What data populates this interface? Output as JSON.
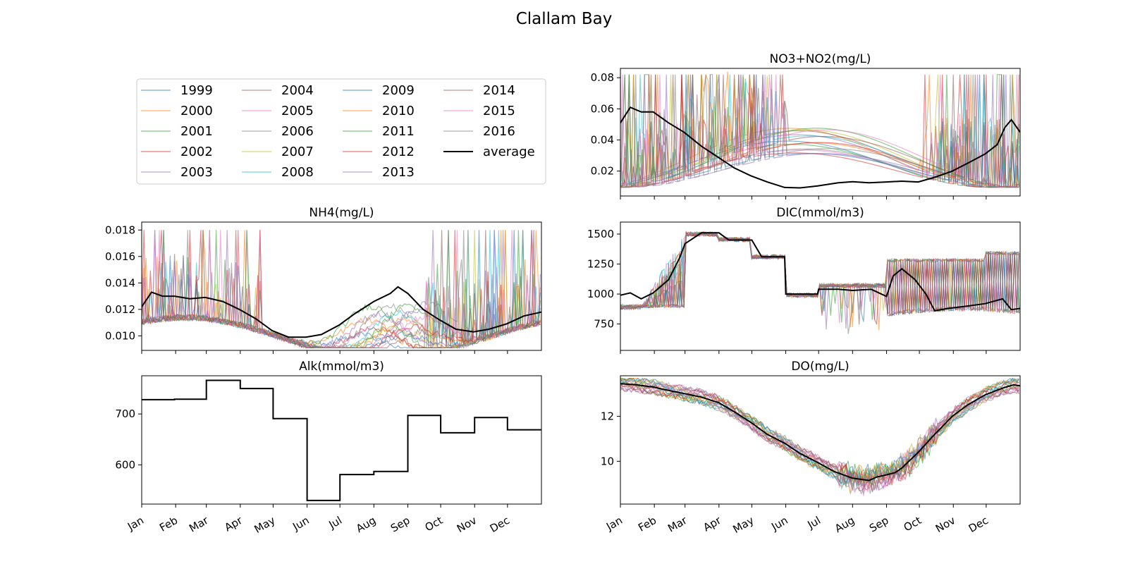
{
  "figure": {
    "title": "Clallam Bay"
  },
  "colors": {
    "average": "#000000",
    "palette": [
      "#1f77b4",
      "#ff7f0e",
      "#2ca02c",
      "#d62728",
      "#9467bd",
      "#8c564b",
      "#e377c2",
      "#7f7f7f",
      "#bcbd22",
      "#17becf"
    ]
  },
  "legend": {
    "entries": [
      "1999",
      "2000",
      "2001",
      "2002",
      "2003",
      "2004",
      "2005",
      "2006",
      "2007",
      "2008",
      "2009",
      "2010",
      "2011",
      "2012",
      "2013",
      "2014",
      "2015",
      "2016",
      "average"
    ]
  },
  "months": [
    "Jan",
    "Feb",
    "Mar",
    "Apr",
    "May",
    "Jun",
    "Jul",
    "Aug",
    "Sep",
    "Oct",
    "Nov",
    "Dec"
  ],
  "chart_data": [
    {
      "type": "line",
      "id": "no3",
      "title": "NO3+NO2(mg/L)",
      "xlabel": "",
      "ylabel": "",
      "xlim": [
        1,
        366
      ],
      "ylim": [
        0.004,
        0.086
      ],
      "yticks": [
        0.02,
        0.04,
        0.06,
        0.08
      ],
      "ytick_labels": [
        "0.02",
        "0.04",
        "0.06",
        "0.08"
      ],
      "years": [
        "1999",
        "2000",
        "2001",
        "2002",
        "2003",
        "2004",
        "2005",
        "2006",
        "2007",
        "2008",
        "2009",
        "2010",
        "2011",
        "2012",
        "2013",
        "2014",
        "2015",
        "2016"
      ],
      "average": {
        "name": "average",
        "x": [
          1,
          10,
          20,
          31,
          45,
          59,
          75,
          90,
          105,
          120,
          135,
          151,
          165,
          181,
          200,
          213,
          228,
          244,
          258,
          273,
          288,
          304,
          318,
          334,
          345,
          352,
          358,
          366
        ],
        "y": [
          0.051,
          0.061,
          0.058,
          0.058,
          0.051,
          0.045,
          0.036,
          0.029,
          0.022,
          0.017,
          0.013,
          0.0095,
          0.0092,
          0.0105,
          0.0125,
          0.0132,
          0.0125,
          0.013,
          0.0135,
          0.013,
          0.016,
          0.02,
          0.025,
          0.031,
          0.037,
          0.048,
          0.053,
          0.045
        ]
      }
    },
    {
      "type": "line",
      "id": "nh4",
      "title": "NH4(mg/L)",
      "xlabel": "",
      "ylabel": "",
      "xlim": [
        1,
        366
      ],
      "ylim": [
        0.0089,
        0.0186
      ],
      "yticks": [
        0.01,
        0.012,
        0.014,
        0.016,
        0.018
      ],
      "ytick_labels": [
        "0.010",
        "0.012",
        "0.014",
        "0.016",
        "0.018"
      ],
      "years": [
        "1999",
        "2000",
        "2001",
        "2002",
        "2003",
        "2004",
        "2005",
        "2006",
        "2007",
        "2008",
        "2009",
        "2010",
        "2011",
        "2012",
        "2013",
        "2014",
        "2015",
        "2016"
      ],
      "average": {
        "name": "average",
        "x": [
          1,
          10,
          20,
          31,
          45,
          59,
          75,
          90,
          105,
          120,
          135,
          151,
          165,
          181,
          196,
          213,
          228,
          235,
          244,
          258,
          273,
          288,
          304,
          318,
          334,
          350,
          366
        ],
        "y": [
          0.0122,
          0.0133,
          0.013,
          0.013,
          0.0128,
          0.0129,
          0.0126,
          0.012,
          0.0113,
          0.0104,
          0.0099,
          0.0099,
          0.0101,
          0.0108,
          0.0117,
          0.0126,
          0.0132,
          0.0137,
          0.0132,
          0.012,
          0.0112,
          0.0105,
          0.0103,
          0.0105,
          0.0109,
          0.0115,
          0.0118
        ]
      }
    },
    {
      "type": "line",
      "id": "dic",
      "title": "DIC(mmol/m3)",
      "xlabel": "",
      "ylabel": "",
      "xlim": [
        1,
        366
      ],
      "ylim": [
        530,
        1600
      ],
      "yticks": [
        750,
        1000,
        1250,
        1500
      ],
      "ytick_labels": [
        "750",
        "1000",
        "1250",
        "1500"
      ],
      "years": [
        "1999",
        "2000",
        "2001",
        "2002",
        "2003",
        "2004",
        "2005",
        "2006",
        "2007",
        "2008",
        "2009",
        "2010",
        "2011",
        "2012",
        "2013",
        "2014",
        "2015",
        "2016"
      ],
      "average": {
        "name": "average",
        "x": [
          1,
          10,
          20,
          31,
          45,
          55,
          60,
          75,
          91,
          100,
          121,
          130,
          151,
          152,
          170,
          181,
          182,
          200,
          213,
          230,
          244,
          250,
          258,
          270,
          280,
          288,
          300,
          318,
          334,
          350,
          358,
          366
        ],
        "y": [
          990,
          1010,
          960,
          1010,
          1120,
          1300,
          1420,
          1510,
          1510,
          1450,
          1450,
          1310,
          1310,
          1000,
          1000,
          1000,
          1040,
          1040,
          1030,
          1040,
          980,
          1150,
          1210,
          1120,
          1000,
          860,
          880,
          900,
          920,
          960,
          870,
          880
        ]
      }
    },
    {
      "type": "line",
      "id": "alk",
      "title": "Alk(mmol/m3)",
      "xlabel": "",
      "ylabel": "",
      "xlim": [
        1,
        366
      ],
      "ylim": [
        523,
        775
      ],
      "yticks": [
        600,
        700
      ],
      "ytick_labels": [
        "600",
        "700"
      ],
      "average": {
        "name": "average",
        "x": [
          1,
          31,
          31,
          60,
          60,
          91,
          91,
          121,
          121,
          152,
          152,
          182,
          182,
          213,
          213,
          244,
          244,
          274,
          274,
          305,
          305,
          335,
          335,
          366
        ],
        "y": [
          728,
          728,
          729,
          729,
          766,
          766,
          750,
          750,
          691,
          691,
          530,
          530,
          581,
          581,
          587,
          587,
          697,
          697,
          663,
          663,
          693,
          693,
          669,
          669
        ]
      }
    },
    {
      "type": "line",
      "id": "do",
      "title": "DO(mg/L)",
      "xlabel": "",
      "ylabel": "",
      "xlim": [
        1,
        366
      ],
      "ylim": [
        8.1,
        13.8
      ],
      "yticks": [
        10,
        12
      ],
      "ytick_labels": [
        "10",
        "12"
      ],
      "years": [
        "1999",
        "2000",
        "2001",
        "2002",
        "2003",
        "2004",
        "2005",
        "2006",
        "2007",
        "2008",
        "2009",
        "2010",
        "2011",
        "2012",
        "2013",
        "2014",
        "2015",
        "2016"
      ],
      "average": {
        "name": "average",
        "x": [
          1,
          15,
          31,
          45,
          60,
          75,
          91,
          105,
          121,
          135,
          151,
          165,
          181,
          196,
          213,
          228,
          235,
          244,
          252,
          258,
          273,
          288,
          304,
          318,
          334,
          350,
          360,
          366
        ],
        "y": [
          13.45,
          13.4,
          13.3,
          13.15,
          13.0,
          12.85,
          12.6,
          12.2,
          11.7,
          11.2,
          10.8,
          10.35,
          9.95,
          9.55,
          9.25,
          9.15,
          9.3,
          9.4,
          9.5,
          9.7,
          10.4,
          11.2,
          12.0,
          12.5,
          12.95,
          13.25,
          13.4,
          13.35
        ]
      }
    }
  ]
}
